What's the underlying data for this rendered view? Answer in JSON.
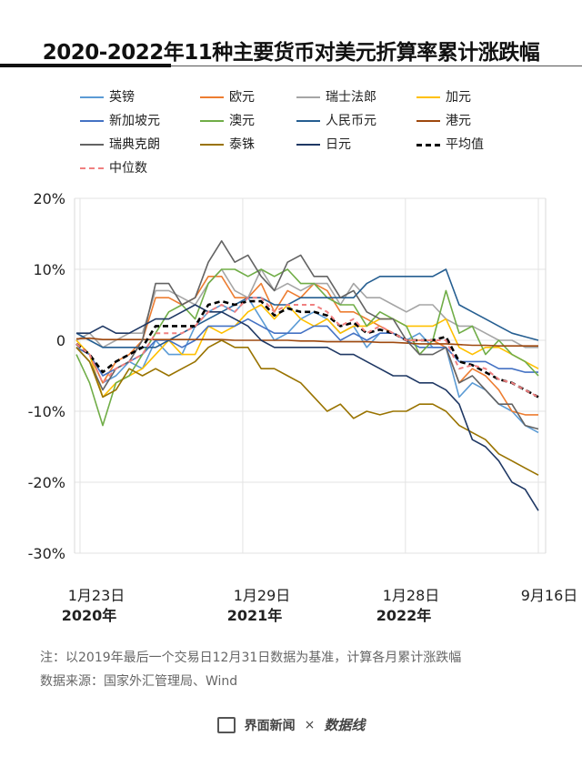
{
  "title": "2020-2022年11种主要货币对美元折算率累计涨跌幅",
  "note1": "注：以2019年最后一个交易日12月31日数据为基准，计算各月累计涨跌幅",
  "note2": "数据来源：国家外汇管理局、Wind",
  "footer": {
    "brand1": "界面新闻",
    "separator": "×",
    "brand2": "数据线"
  },
  "chart_data": {
    "type": "line",
    "ylim": [
      -30,
      20
    ],
    "yticks": [
      "20%",
      "10%",
      "0",
      "-10%",
      "-20%",
      "-30%"
    ],
    "xtick_labels": [
      {
        "date": "1月23日",
        "year": "2020年"
      },
      {
        "date": "1月29日",
        "year": "2021年"
      },
      {
        "date": "1月28日",
        "year": "2022年"
      },
      {
        "date": "9月16日",
        "year": ""
      }
    ],
    "grid": true,
    "legend_position": "top",
    "series": [
      {
        "name": "英镑",
        "color": "#5b9bd5",
        "style": "solid",
        "values": [
          -1,
          -2,
          -6,
          -5,
          -3,
          -4,
          0,
          -2,
          -2,
          2,
          4,
          5,
          4,
          6,
          3,
          0,
          1,
          3,
          4,
          3,
          1,
          2,
          -1,
          1,
          1,
          0,
          1,
          -1,
          -1,
          -8,
          -6,
          -7,
          -9,
          -10,
          -12,
          -13
        ]
      },
      {
        "name": "欧元",
        "color": "#ed7d31",
        "style": "solid",
        "values": [
          -1,
          -2,
          -6,
          -3,
          -2,
          0,
          6,
          6,
          5,
          6,
          9,
          9,
          6,
          6,
          8,
          4,
          7,
          6,
          8,
          7,
          4,
          4,
          3,
          2,
          1,
          0,
          0,
          0,
          -1,
          -6,
          -4,
          -5,
          -7,
          -10,
          -10.5,
          -10.5
        ]
      },
      {
        "name": "瑞士法郎",
        "color": "#a5a5a5",
        "style": "solid",
        "values": [
          0,
          1,
          -1,
          0,
          1,
          1,
          7,
          7,
          6,
          5,
          8,
          10,
          7,
          6,
          10,
          7,
          8,
          7,
          8,
          8,
          5,
          8,
          6,
          6,
          5,
          4,
          5,
          5,
          3,
          2,
          2,
          1,
          0,
          0,
          -1,
          -1
        ]
      },
      {
        "name": "加元",
        "color": "#ffc000",
        "style": "solid",
        "values": [
          0,
          -2,
          -8,
          -6,
          -5,
          -4,
          -2,
          0,
          -2,
          -2,
          2,
          1,
          2,
          4,
          5,
          3,
          5,
          3,
          2,
          3,
          1,
          2,
          2,
          3,
          3,
          2,
          2,
          2,
          3,
          -1,
          -2,
          -1,
          -1,
          -2,
          -3,
          -4
        ]
      },
      {
        "name": "新加坡元",
        "color": "#4472c4",
        "style": "solid",
        "values": [
          -1,
          -2,
          -5,
          -4,
          -3,
          -2,
          0,
          0,
          -1,
          0,
          2,
          2,
          2,
          3,
          2,
          1,
          1,
          1,
          2,
          2,
          0,
          1,
          0,
          1,
          1,
          0,
          -1,
          -1,
          -1,
          -3,
          -3,
          -3,
          -4,
          -4,
          -4.5,
          -4.5
        ]
      },
      {
        "name": "澳元",
        "color": "#70ad47",
        "style": "solid",
        "values": [
          -2,
          -6,
          -12,
          -6,
          -5,
          -2,
          1,
          4,
          5,
          3,
          8,
          10,
          10,
          9,
          10,
          9,
          10,
          8,
          8,
          6,
          5,
          5,
          2,
          4,
          3,
          2,
          -2,
          0,
          7,
          1,
          2,
          -2,
          0,
          -2,
          -3,
          -5
        ]
      },
      {
        "name": "人民币元",
        "color": "#255e91",
        "style": "solid",
        "values": [
          1,
          0,
          -1,
          -1,
          -1,
          -1,
          -1,
          0,
          1,
          2,
          3,
          4,
          5,
          6,
          6,
          5,
          5,
          6,
          6,
          6,
          6,
          6,
          8,
          9,
          9,
          9,
          9,
          9,
          10,
          5,
          4,
          3,
          2,
          1,
          0.5,
          0
        ]
      },
      {
        "name": "港元",
        "color": "#9e480e",
        "style": "solid",
        "values": [
          0.2,
          0.3,
          0.1,
          0.1,
          0.1,
          0.1,
          0.1,
          0.1,
          0.1,
          0.1,
          0.1,
          0.1,
          0,
          0,
          0,
          0,
          0,
          -0.1,
          -0.1,
          -0.2,
          -0.2,
          -0.2,
          -0.2,
          -0.3,
          -0.3,
          -0.4,
          -0.5,
          -0.5,
          -0.5,
          -0.6,
          -0.7,
          -0.7,
          -0.8,
          -0.8,
          -0.8,
          -0.8
        ]
      },
      {
        "name": "瑞典克朗",
        "color": "#636363",
        "style": "solid",
        "values": [
          -1,
          -3,
          -7,
          -4,
          -3,
          0,
          8,
          8,
          5,
          6,
          11,
          14,
          11,
          12,
          9,
          7,
          11,
          12,
          9,
          9,
          6,
          7,
          4,
          3,
          3,
          0,
          -2,
          -2,
          -1,
          -6,
          -5,
          -7,
          -9,
          -9,
          -12,
          -12.5
        ]
      },
      {
        "name": "泰铢",
        "color": "#997300",
        "style": "solid",
        "values": [
          -1,
          -3,
          -8,
          -7,
          -4,
          -5,
          -4,
          -5,
          -4,
          -3,
          -1,
          0,
          -1,
          -1,
          -4,
          -4,
          -5,
          -6,
          -8,
          -10,
          -9,
          -11,
          -10,
          -10.5,
          -10,
          -10,
          -9,
          -9,
          -10,
          -12,
          -13,
          -14,
          -16,
          -17,
          -18,
          -19
        ]
      },
      {
        "name": "日元",
        "color": "#1f3864",
        "style": "solid",
        "values": [
          1,
          1,
          2,
          1,
          1,
          2,
          3,
          3,
          4,
          5,
          4,
          4,
          3,
          2,
          0,
          -1,
          -1,
          -1,
          -1,
          -1,
          -2,
          -2,
          -3,
          -4,
          -5,
          -5,
          -6,
          -6,
          -7,
          -9,
          -14,
          -15,
          -17,
          -20,
          -21,
          -24
        ]
      },
      {
        "name": "平均值",
        "color": "#000000",
        "style": "dashed-bold",
        "values": [
          -0.5,
          -2,
          -4.5,
          -3,
          -2,
          -1,
          2,
          2,
          2,
          2,
          5,
          5.5,
          5,
          5.5,
          5.5,
          3.5,
          4.5,
          4,
          4,
          3.5,
          2,
          2.5,
          1,
          1.5,
          1,
          0,
          0,
          0,
          0.5,
          -3,
          -3.5,
          -4.5,
          -5.5,
          -6,
          -7,
          -8
        ]
      },
      {
        "name": "中位数",
        "color": "#f08080",
        "style": "dashed",
        "values": [
          -0.5,
          -2,
          -6,
          -4,
          -3,
          -2,
          1,
          1,
          1,
          2,
          4,
          5,
          4,
          6,
          6,
          4,
          5,
          5,
          5,
          4,
          2,
          3,
          1,
          2,
          1,
          0,
          0,
          0,
          0,
          -4,
          -3.5,
          -4,
          -5.5,
          -6,
          -7,
          -8
        ]
      }
    ]
  }
}
